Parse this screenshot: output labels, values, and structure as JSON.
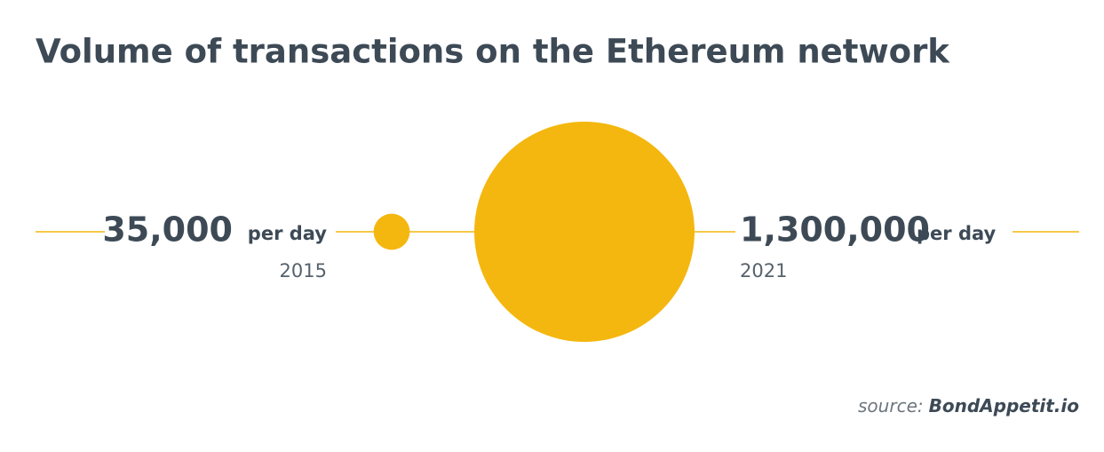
{
  "chart_data": {
    "type": "bubble",
    "title": "Volume of transactions on the Ethereum network",
    "categories": [
      "2015",
      "2021"
    ],
    "values": [
      35000,
      1300000
    ],
    "value_labels": [
      "35,000",
      "1,300,000"
    ],
    "unit_label": "per day",
    "color": "#f4b70f",
    "source": {
      "prefix": "source:",
      "name": "BondAppetit.io"
    }
  }
}
